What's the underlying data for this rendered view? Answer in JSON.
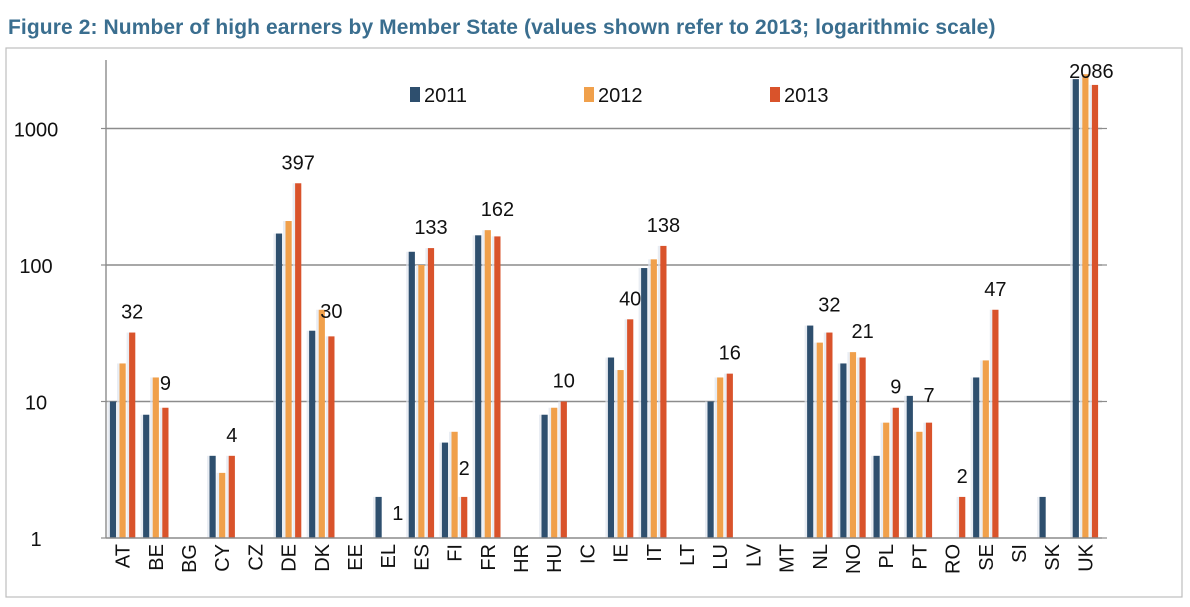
{
  "title": "Figure 2: Number of high earners by Member State (values shown refer to 2013; logarithmic scale)",
  "chart_data": {
    "type": "bar",
    "scale": "log",
    "ylim": [
      1,
      3000
    ],
    "y_ticks": [
      1,
      10,
      100,
      1000
    ],
    "y_tick_labels": [
      "1",
      "10",
      "100",
      "1000"
    ],
    "grid": true,
    "legend_position": "top",
    "categories": [
      "AT",
      "BE",
      "BG",
      "CY",
      "CZ",
      "DE",
      "DK",
      "EE",
      "EL",
      "ES",
      "FI",
      "FR",
      "HR",
      "HU",
      "IC",
      "IE",
      "IT",
      "LT",
      "LU",
      "LV",
      "MT",
      "NL",
      "NO",
      "PL",
      "PT",
      "RO",
      "SE",
      "SI",
      "SK",
      "UK"
    ],
    "series": [
      {
        "name": "2011",
        "color": "#2e4f6e",
        "values": [
          10,
          8,
          null,
          4,
          null,
          170,
          33,
          null,
          2,
          125,
          5,
          165,
          null,
          8,
          null,
          21,
          95,
          null,
          10,
          null,
          null,
          36,
          19,
          4,
          11,
          null,
          15,
          null,
          2,
          2300
        ]
      },
      {
        "name": "2012",
        "color": "#f0a04b",
        "values": [
          19,
          15,
          null,
          3,
          null,
          210,
          47,
          null,
          null,
          100,
          6,
          180,
          null,
          9,
          null,
          17,
          110,
          null,
          15,
          null,
          null,
          27,
          23,
          7,
          6,
          null,
          20,
          null,
          null,
          2500
        ]
      },
      {
        "name": "2013",
        "color": "#d9532b",
        "values": [
          32,
          9,
          null,
          4,
          null,
          397,
          30,
          null,
          1,
          133,
          2,
          162,
          null,
          10,
          null,
          40,
          138,
          null,
          16,
          null,
          null,
          32,
          21,
          9,
          7,
          2,
          47,
          null,
          null,
          2086
        ]
      }
    ],
    "data_labels": [
      "32",
      "9",
      "",
      "4",
      "",
      "397",
      "30",
      "",
      "1",
      "133",
      "2",
      "162",
      "",
      "10",
      "",
      "40",
      "138",
      "",
      "16",
      "",
      "",
      "32",
      "21",
      "9",
      "7",
      "2",
      "47",
      "",
      "",
      "2086"
    ]
  }
}
